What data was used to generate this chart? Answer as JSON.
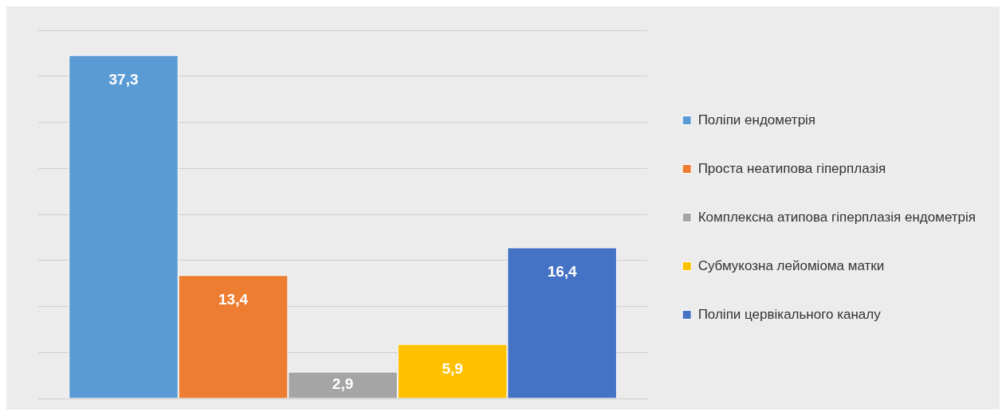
{
  "chart_data": {
    "type": "bar",
    "categories": [
      null
    ],
    "series": [
      {
        "name": "Поліпи ендометрія",
        "color": "#5b9bd5",
        "values": [
          37.3
        ],
        "value_labels": [
          "37,3"
        ]
      },
      {
        "name": "Проста неатипова гіперплазія",
        "color": "#ed7d31",
        "values": [
          13.4
        ],
        "value_labels": [
          "13,4"
        ]
      },
      {
        "name": "Комплексна атипова гіперплазія ендометрія",
        "color": "#a5a5a5",
        "values": [
          2.9
        ],
        "value_labels": [
          "2,9"
        ]
      },
      {
        "name": "Субмукозна лейоміома матки",
        "color": "#ffc000",
        "values": [
          5.9
        ],
        "value_labels": [
          "5,9"
        ]
      },
      {
        "name": "Поліпи цервікального каналу",
        "color": "#4472c4",
        "values": [
          16.4
        ],
        "value_labels": [
          "16,4"
        ]
      }
    ],
    "grid": "y",
    "legend": "right"
  }
}
